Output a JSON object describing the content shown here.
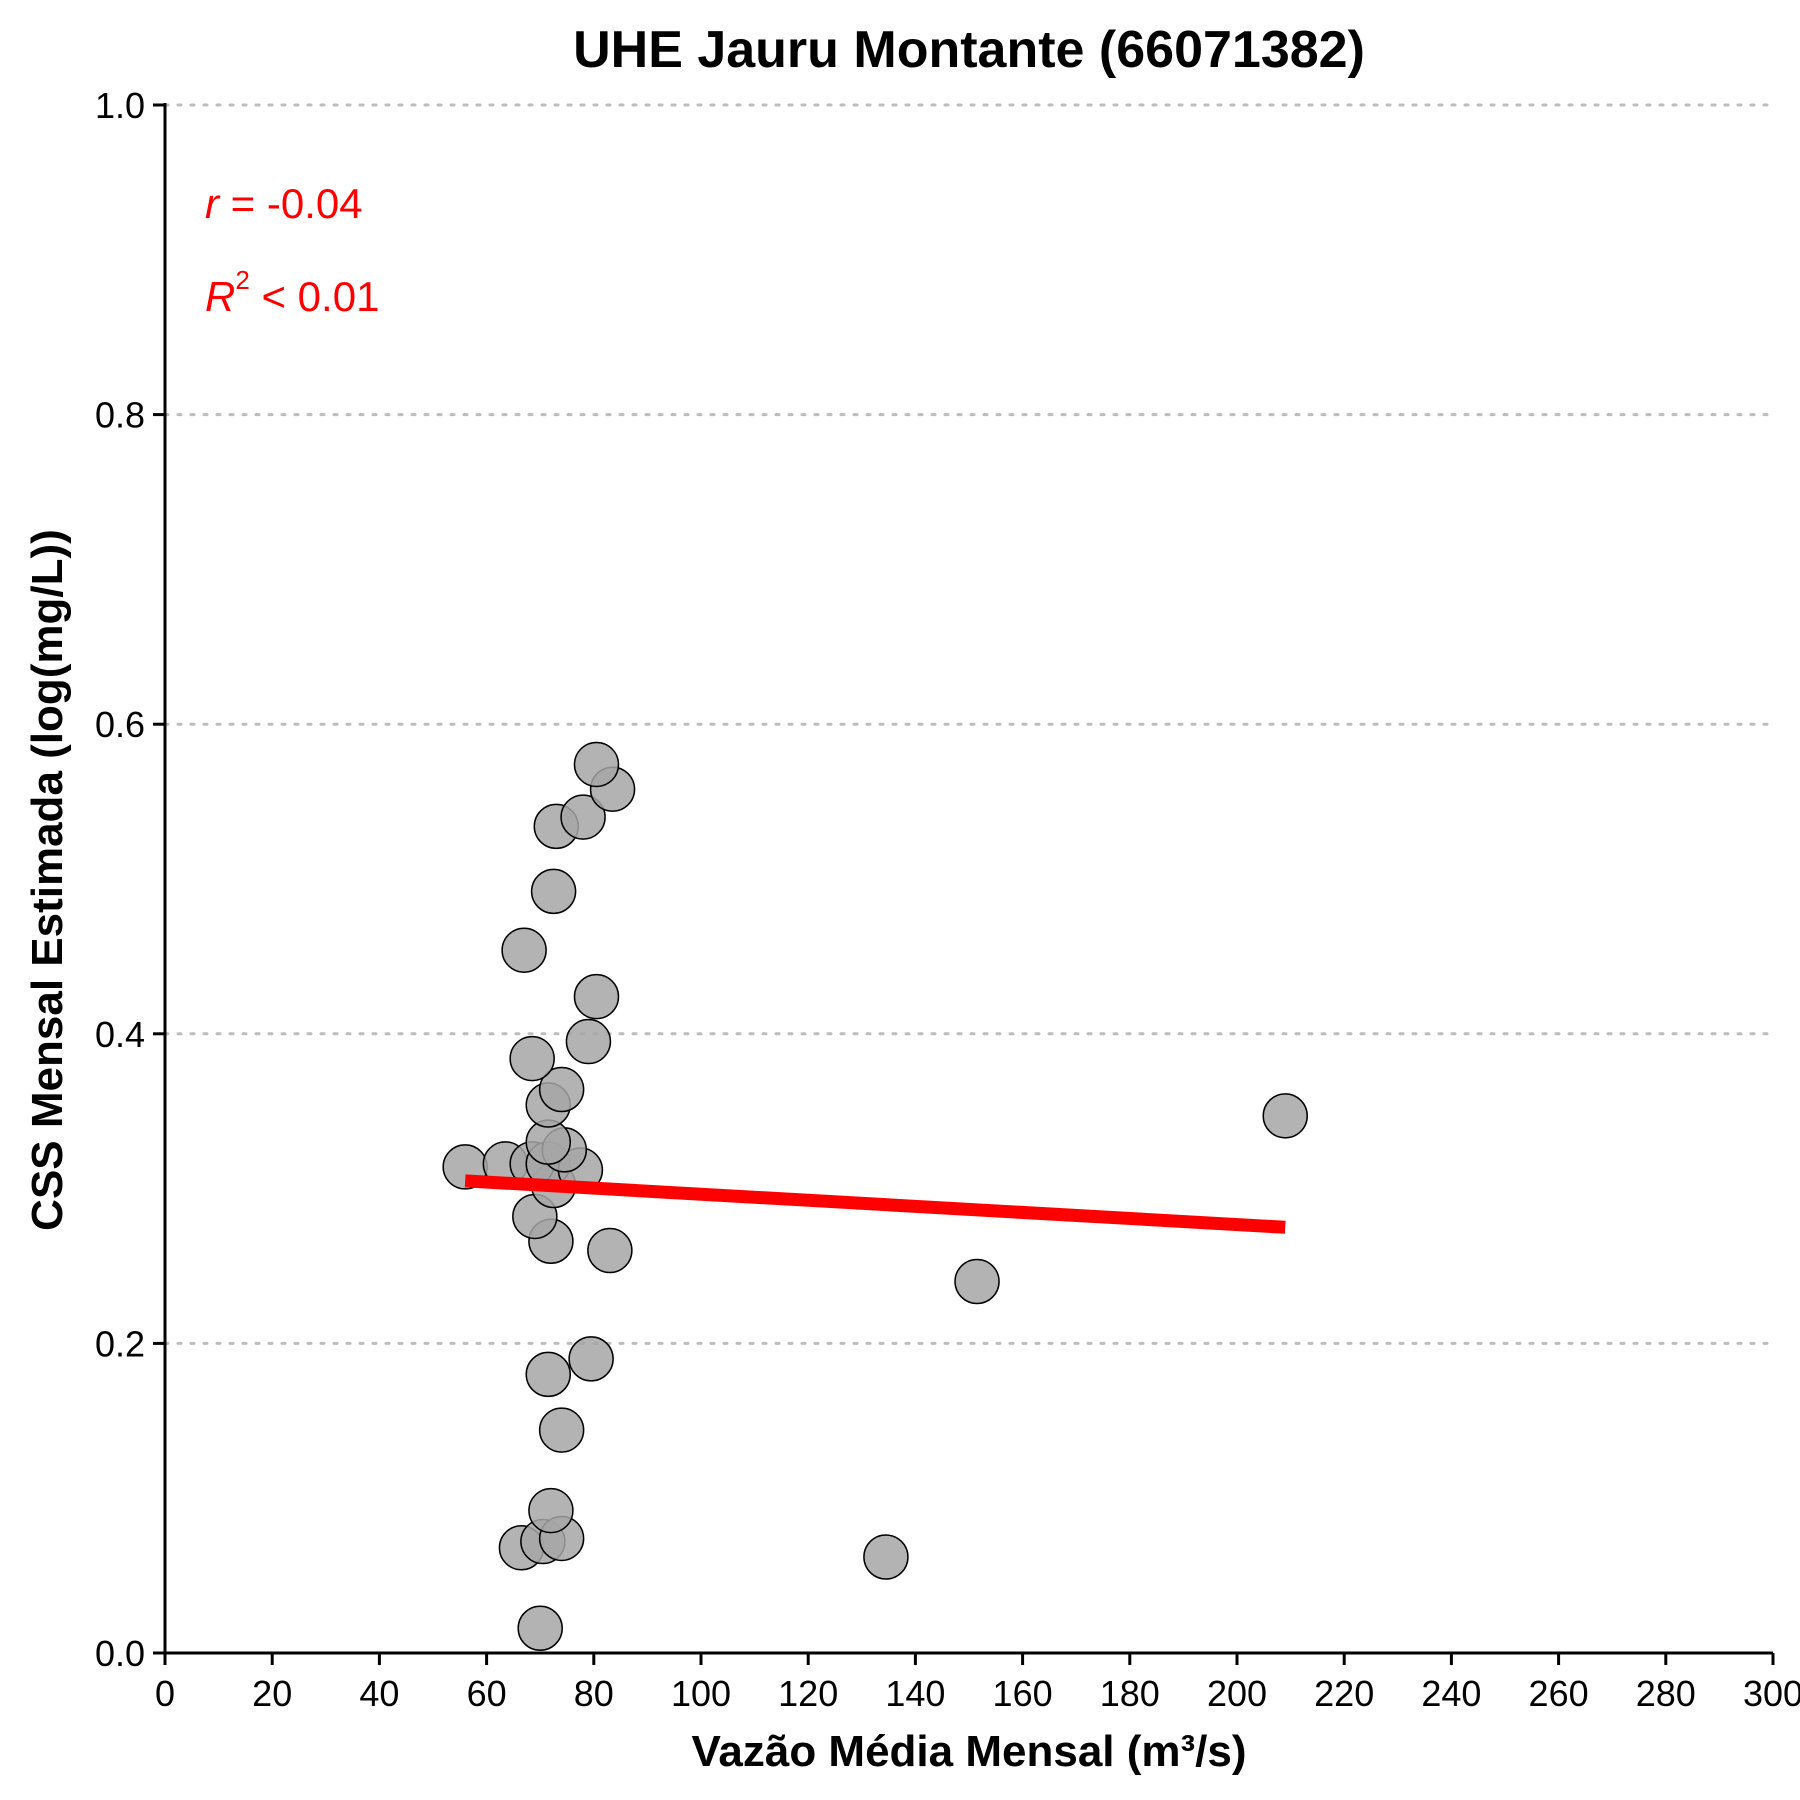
{
  "chart_data": {
    "type": "scatter",
    "title": "UHE Jauru Montante (66071382)",
    "xlabel": "Vazão Média Mensal (m³/s)",
    "ylabel": "CSS Mensal Estimada (log(mg/L))",
    "xlim": [
      0,
      300
    ],
    "ylim": [
      0,
      1
    ],
    "xticks": [
      "0",
      "20",
      "40",
      "60",
      "80",
      "100",
      "120",
      "140",
      "160",
      "180",
      "200",
      "220",
      "240",
      "260",
      "280",
      "300"
    ],
    "yticks": [
      "0.0",
      "0.2",
      "0.4",
      "0.6",
      "0.8",
      "1.0"
    ],
    "grid": "horizontal dotted",
    "points": [
      {
        "x": 70.0,
        "y": 0.016
      },
      {
        "x": 66.5,
        "y": 0.068
      },
      {
        "x": 70.5,
        "y": 0.072
      },
      {
        "x": 74.0,
        "y": 0.074
      },
      {
        "x": 72.0,
        "y": 0.092
      },
      {
        "x": 134.5,
        "y": 0.062
      },
      {
        "x": 74.0,
        "y": 0.144
      },
      {
        "x": 71.5,
        "y": 0.18
      },
      {
        "x": 79.5,
        "y": 0.19
      },
      {
        "x": 151.5,
        "y": 0.24
      },
      {
        "x": 83.0,
        "y": 0.26
      },
      {
        "x": 72.0,
        "y": 0.266
      },
      {
        "x": 69.0,
        "y": 0.282
      },
      {
        "x": 72.5,
        "y": 0.302
      },
      {
        "x": 56.0,
        "y": 0.314
      },
      {
        "x": 63.5,
        "y": 0.316
      },
      {
        "x": 68.5,
        "y": 0.316
      },
      {
        "x": 71.5,
        "y": 0.316
      },
      {
        "x": 77.5,
        "y": 0.312
      },
      {
        "x": 74.5,
        "y": 0.325
      },
      {
        "x": 71.5,
        "y": 0.33
      },
      {
        "x": 71.5,
        "y": 0.354
      },
      {
        "x": 74.0,
        "y": 0.364
      },
      {
        "x": 68.5,
        "y": 0.384
      },
      {
        "x": 79.0,
        "y": 0.395
      },
      {
        "x": 80.5,
        "y": 0.424
      },
      {
        "x": 67.0,
        "y": 0.454
      },
      {
        "x": 72.5,
        "y": 0.492
      },
      {
        "x": 73.0,
        "y": 0.534
      },
      {
        "x": 78.0,
        "y": 0.54
      },
      {
        "x": 83.5,
        "y": 0.558
      },
      {
        "x": 80.5,
        "y": 0.574
      },
      {
        "x": 209.0,
        "y": 0.347
      }
    ],
    "trendline": {
      "x": [
        56,
        209
      ],
      "y": [
        0.305,
        0.275
      ],
      "color": "#ff0000"
    },
    "point_color": "#a6a6a6",
    "annotations": {
      "r_symbol": "r",
      "r_text": " = -0.04",
      "r2_symbol": "R",
      "r2_sup": "2",
      "r2_text": " < 0.01",
      "color": "#ff0000"
    }
  }
}
